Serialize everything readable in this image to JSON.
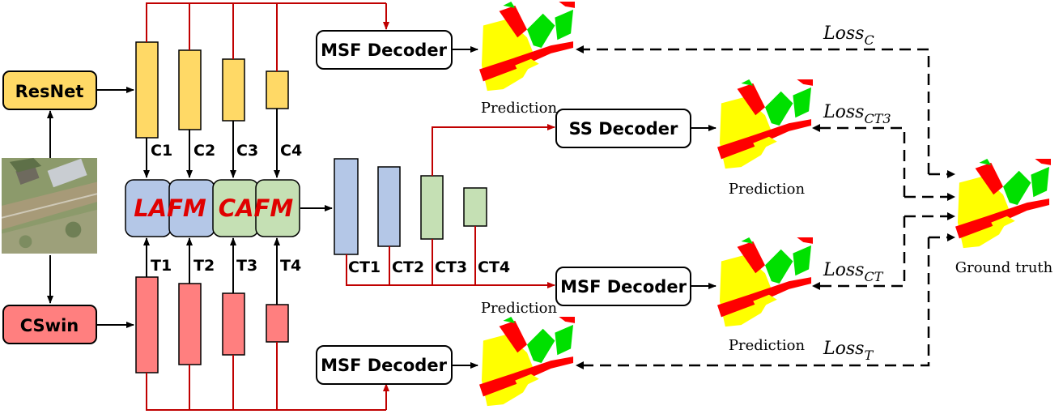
{
  "backbones": {
    "resnet": "ResNet",
    "cswin": "CSwin"
  },
  "features": {
    "c": [
      "C1",
      "C2",
      "C3",
      "C4"
    ],
    "t": [
      "T1",
      "T2",
      "T3",
      "T4"
    ],
    "ct": [
      "CT1",
      "CT2",
      "CT3",
      "CT4"
    ]
  },
  "fusion": {
    "lafm": "LAFM",
    "cafm": "CAFM"
  },
  "decoders": {
    "msf_top": "MSF Decoder",
    "ss": "SS Decoder",
    "msf_mid": "MSF Decoder",
    "msf_bottom": "MSF Decoder"
  },
  "predictions": {
    "p1": "Prediction",
    "p2": "Prediction",
    "p3": "Prediction",
    "p4": "Prediction"
  },
  "ground_truth": "Ground truth",
  "losses": {
    "c": {
      "base": "Loss",
      "sub": "C"
    },
    "ct3": {
      "base": "Loss",
      "sub": "CT3"
    },
    "ct": {
      "base": "Loss",
      "sub": "CT"
    },
    "t": {
      "base": "Loss",
      "sub": "T"
    }
  },
  "colors": {
    "resnet_fill": "#FFD966",
    "cswin_fill": "#FF7F7F",
    "c_feature_fill": "#FFD966",
    "t_feature_fill": "#FF7F7F",
    "lafm_fill": "#B4C7E7",
    "cafm_fill": "#C5E0B4",
    "ct_blue_fill": "#B4C7E7",
    "ct_green_fill": "#C5E0B4",
    "flow_line": "#C00000",
    "fusion_text": "#E00000",
    "seg_yellow": "#FFFF00",
    "seg_red": "#FF0000",
    "seg_green": "#00E000"
  },
  "icons": {
    "input_image": "aerial-image-icon",
    "segmentation_map": "segmentation-map-icon"
  }
}
